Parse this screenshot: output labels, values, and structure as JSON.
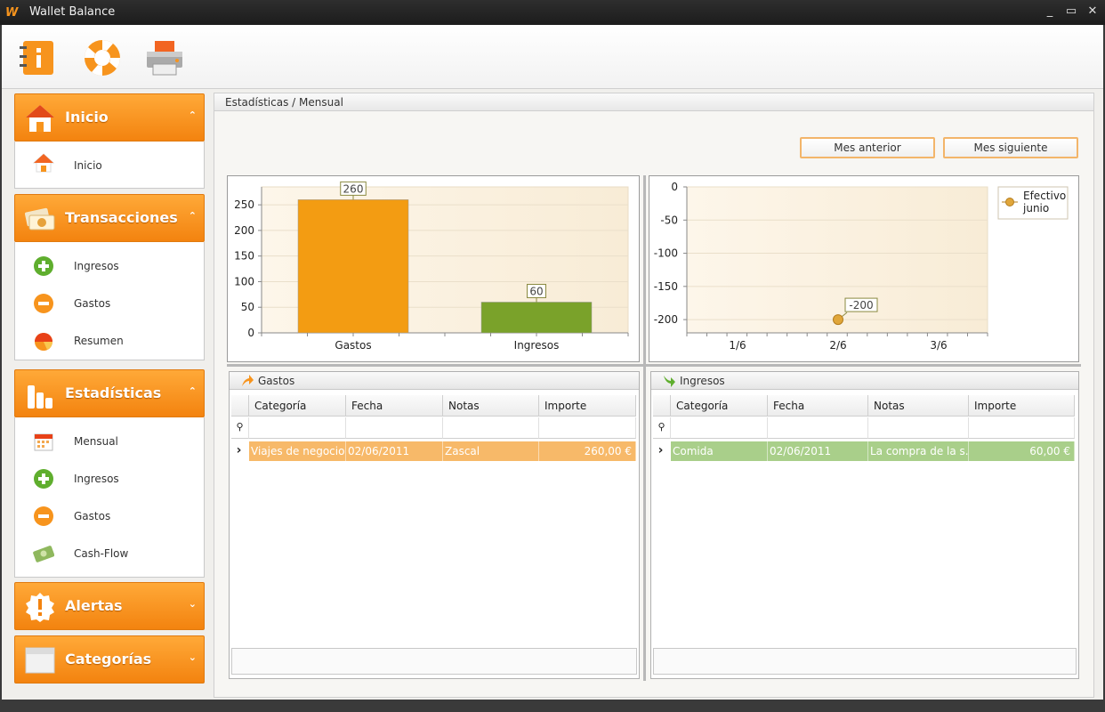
{
  "window": {
    "logo": "W",
    "title": "Wallet Balance",
    "controls": {
      "minimize": "_",
      "maximize": "▭",
      "close": "✕"
    }
  },
  "toolbar": {
    "icons": [
      "info-icon",
      "lifebuoy-icon",
      "printer-icon"
    ]
  },
  "sidebar": {
    "groups": [
      {
        "label": "Inicio",
        "icon": "home-icon",
        "expanded": true,
        "items": [
          {
            "label": "Inicio",
            "icon": "home-icon"
          }
        ]
      },
      {
        "label": "Transacciones",
        "icon": "money-icon",
        "expanded": true,
        "items": [
          {
            "label": "Ingresos",
            "icon": "plus-circle-icon"
          },
          {
            "label": "Gastos",
            "icon": "minus-circle-icon"
          },
          {
            "label": "Resumen",
            "icon": "pie-chart-icon"
          }
        ]
      },
      {
        "label": "Estadísticas",
        "icon": "stats-icon",
        "expanded": true,
        "items": [
          {
            "label": "Mensual",
            "icon": "calendar-icon"
          },
          {
            "label": "Ingresos",
            "icon": "plus-circle-icon"
          },
          {
            "label": "Gastos",
            "icon": "minus-circle-icon"
          },
          {
            "label": "Cash-Flow",
            "icon": "cash-icon"
          }
        ]
      },
      {
        "label": "Alertas",
        "icon": "alert-icon",
        "expanded": false,
        "items": []
      },
      {
        "label": "Categorías",
        "icon": "folder-icon",
        "expanded": false,
        "items": []
      }
    ],
    "chevron_up": "⌃",
    "chevron_down": "⌄"
  },
  "main": {
    "breadcrumb": "Estadísticas / Mensual",
    "prev_button": "Mes anterior",
    "next_button": "Mes siguiente"
  },
  "chart_data": [
    {
      "type": "bar",
      "categories": [
        "Gastos",
        "Ingresos"
      ],
      "values": [
        260,
        60
      ],
      "data_labels": [
        "260",
        "60"
      ],
      "colors": [
        "#f39c12",
        "#7aa22a"
      ],
      "ylim": [
        0,
        285
      ],
      "yticks": [
        0,
        50,
        100,
        150,
        200,
        250
      ],
      "title": "",
      "xlabel": "",
      "ylabel": ""
    },
    {
      "type": "scatter",
      "x_categories": [
        "1/6",
        "2/6",
        "3/6"
      ],
      "series": [
        {
          "name": "Efectivo junio",
          "x": [
            "2/6"
          ],
          "y": [
            -200
          ],
          "color": "#e0a63a"
        }
      ],
      "data_labels": [
        "-200"
      ],
      "ylim": [
        -220,
        0
      ],
      "yticks": [
        0,
        -50,
        -100,
        -150,
        -200
      ],
      "legend": "top-right",
      "title": "",
      "xlabel": "",
      "ylabel": ""
    }
  ],
  "grids": {
    "gastos": {
      "title": "Gastos",
      "columns": [
        "Categoría",
        "Fecha",
        "Notas",
        "Importe"
      ],
      "rows": [
        {
          "Categoria": "Viajes de negocios",
          "Fecha": "02/06/2011",
          "Notas": "Zascal",
          "Importe": "260,00 €"
        }
      ],
      "row_color": "#f7b969"
    },
    "ingresos": {
      "title": "Ingresos",
      "columns": [
        "Categoría",
        "Fecha",
        "Notas",
        "Importe"
      ],
      "rows": [
        {
          "Categoria": "Comida",
          "Fecha": "02/06/2011",
          "Notas": "La compra de la s...",
          "Importe": "60,00 €"
        }
      ],
      "row_color": "#a9cf8a"
    },
    "filter_icon": "⚲",
    "row_indicator": "›"
  }
}
